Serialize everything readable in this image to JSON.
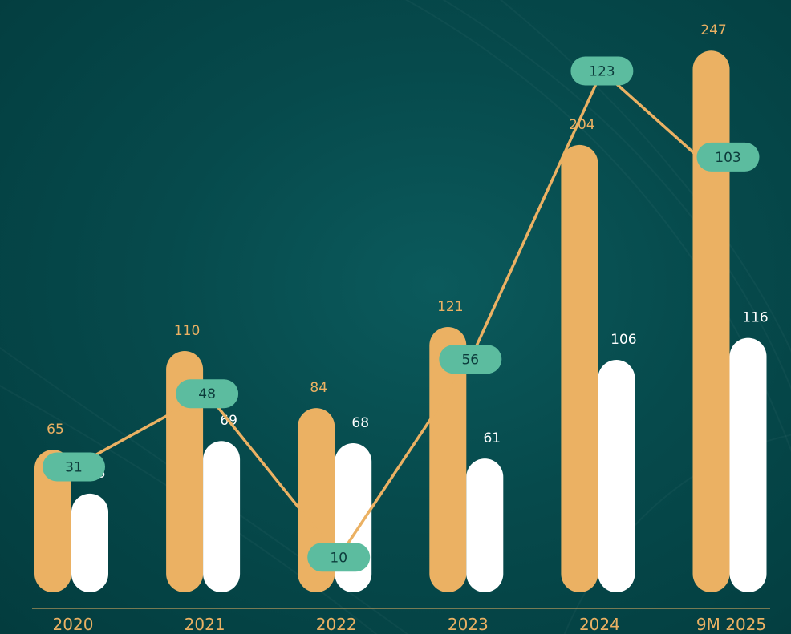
{
  "colors": {
    "background": "#064a4c",
    "series_a": "#ebb163",
    "series_b": "#ffffff",
    "line": "#ebb163",
    "pill": "#5cbc9f",
    "pill_text": "#0c3b3b",
    "tick_text": "#ebb163",
    "axis": "#ebb163"
  },
  "chart_data": {
    "type": "bar",
    "categories": [
      "2020",
      "2021",
      "2022",
      "2023",
      "2024",
      "9M 2025"
    ],
    "series": [
      {
        "values": [
          65,
          110,
          84,
          121,
          204,
          247
        ]
      },
      {
        "values": [
          45,
          69,
          68,
          61,
          106,
          116
        ]
      }
    ],
    "line_series": {
      "values": [
        31,
        48,
        10,
        56,
        123,
        103
      ]
    },
    "ylim": [
      0,
      260
    ],
    "grid": false,
    "legend": "none"
  }
}
